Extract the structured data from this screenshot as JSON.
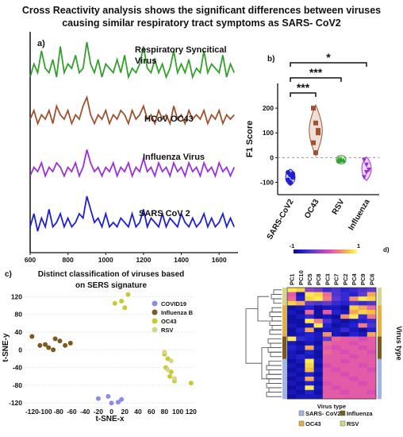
{
  "figure_title_lines": [
    "Cross Reactivity analysis shows the significant differences between viruses",
    "causing similar respiratory tract symptoms as SARS- CoV2"
  ],
  "colors": {
    "green": "#33a02c",
    "brown": "#a0522d",
    "purple": "#9b30d9",
    "blue": "#1f1fd6",
    "covid": "#8c8ce6",
    "fluB": "#7a5a1e",
    "oc43": "#c8c832",
    "rsv": "#d6d68a"
  },
  "chart_data": [
    {
      "type": "line",
      "panel": "a)",
      "x_ticks": [
        "600",
        "800",
        "1000",
        "1200",
        "1400",
        "1600"
      ],
      "xlim": [
        600,
        1700
      ],
      "series": [
        {
          "name": "Respiratory Syncitical Virus",
          "name_lines": [
            "Respiratory Syncitical",
            "Virus"
          ],
          "color": "#33a02c",
          "x": [
            600,
            620,
            640,
            660,
            680,
            700,
            720,
            740,
            760,
            780,
            800,
            820,
            840,
            860,
            880,
            900,
            920,
            940,
            960,
            980,
            1000,
            1020,
            1040,
            1060,
            1080,
            1100,
            1120,
            1140,
            1160,
            1180,
            1200,
            1220,
            1240,
            1260,
            1280,
            1300,
            1320,
            1340,
            1360,
            1380,
            1400,
            1420,
            1440,
            1460,
            1480,
            1500,
            1520,
            1540,
            1560,
            1580,
            1600,
            1620,
            1640,
            1660,
            1680
          ],
          "y": [
            0.2,
            0.5,
            0.3,
            0.8,
            0.4,
            0.3,
            0.6,
            0.2,
            0.9,
            0.3,
            0.5,
            0.4,
            0.7,
            0.3,
            0.4,
            1.0,
            0.5,
            0.3,
            0.6,
            0.2,
            0.5,
            0.4,
            0.3,
            0.6,
            0.3,
            0.7,
            0.2,
            0.4,
            0.3,
            0.5,
            0.9,
            0.4,
            0.3,
            0.6,
            0.3,
            0.5,
            0.2,
            0.4,
            0.8,
            0.3,
            0.5,
            0.3,
            0.6,
            0.2,
            0.4,
            0.3,
            0.8,
            0.3,
            0.5,
            0.4,
            0.3,
            0.7,
            0.2,
            0.5,
            0.3
          ]
        },
        {
          "name": "HCoV OC43",
          "name_lines": [
            "HCoV OC43"
          ],
          "color": "#a0522d",
          "x": [
            600,
            620,
            640,
            660,
            680,
            700,
            720,
            740,
            760,
            780,
            800,
            820,
            840,
            860,
            880,
            900,
            920,
            940,
            960,
            980,
            1000,
            1020,
            1040,
            1060,
            1080,
            1100,
            1120,
            1140,
            1160,
            1180,
            1200,
            1220,
            1240,
            1260,
            1280,
            1300,
            1320,
            1340,
            1360,
            1380,
            1400,
            1420,
            1440,
            1460,
            1480,
            1500,
            1520,
            1540,
            1560,
            1580,
            1600,
            1620,
            1640,
            1660,
            1680
          ],
          "y": [
            0.4,
            0.6,
            0.3,
            0.5,
            0.4,
            0.6,
            0.3,
            0.7,
            0.5,
            0.4,
            0.6,
            0.3,
            0.5,
            0.4,
            0.7,
            0.9,
            0.5,
            0.3,
            0.5,
            0.4,
            0.6,
            0.3,
            0.5,
            0.4,
            0.6,
            0.5,
            0.3,
            0.6,
            0.4,
            0.5,
            0.7,
            0.4,
            0.5,
            0.3,
            0.6,
            0.4,
            0.5,
            0.3,
            0.7,
            0.4,
            0.5,
            0.3,
            0.6,
            0.4,
            0.5,
            0.4,
            0.6,
            0.3,
            0.5,
            0.4,
            0.6,
            0.3,
            0.5,
            0.4,
            0.5
          ]
        },
        {
          "name": "Influenza Virus",
          "name_lines": [
            "Influenza Virus"
          ],
          "color": "#9b30d9",
          "x": [
            600,
            620,
            640,
            660,
            680,
            700,
            720,
            740,
            760,
            780,
            800,
            820,
            840,
            860,
            880,
            900,
            920,
            940,
            960,
            980,
            1000,
            1020,
            1040,
            1060,
            1080,
            1100,
            1120,
            1140,
            1160,
            1180,
            1200,
            1220,
            1240,
            1260,
            1280,
            1300,
            1320,
            1340,
            1360,
            1380,
            1400,
            1420,
            1440,
            1460,
            1480,
            1500,
            1520,
            1540,
            1560,
            1580,
            1600,
            1620,
            1640,
            1660,
            1680
          ],
          "y": [
            0.3,
            0.5,
            0.4,
            0.6,
            0.3,
            0.5,
            0.4,
            0.6,
            0.5,
            0.3,
            0.5,
            0.4,
            0.6,
            0.3,
            0.5,
            0.9,
            0.6,
            0.4,
            0.5,
            0.3,
            0.5,
            0.4,
            0.6,
            0.3,
            0.5,
            0.4,
            0.6,
            0.3,
            0.5,
            0.4,
            0.7,
            0.4,
            0.5,
            0.3,
            0.6,
            0.4,
            0.5,
            0.3,
            0.6,
            0.4,
            0.5,
            0.3,
            0.6,
            0.4,
            0.5,
            0.3,
            0.6,
            0.4,
            0.5,
            0.3,
            0.6,
            0.4,
            0.5,
            0.3,
            0.5
          ]
        },
        {
          "name": "SARS CoV 2",
          "name_lines": [
            "SARS CoV 2"
          ],
          "color": "#1f1fd6",
          "x": [
            600,
            620,
            640,
            660,
            680,
            700,
            720,
            740,
            760,
            780,
            800,
            820,
            840,
            860,
            880,
            900,
            920,
            940,
            960,
            980,
            1000,
            1020,
            1040,
            1060,
            1080,
            1100,
            1120,
            1140,
            1160,
            1180,
            1200,
            1220,
            1240,
            1260,
            1280,
            1300,
            1320,
            1340,
            1360,
            1380,
            1400,
            1420,
            1440,
            1460,
            1480,
            1500,
            1520,
            1540,
            1560,
            1580,
            1600,
            1620,
            1640,
            1660,
            1680
          ],
          "y": [
            0.3,
            0.6,
            0.2,
            0.5,
            0.3,
            0.7,
            0.3,
            0.4,
            0.6,
            0.3,
            0.5,
            0.3,
            0.4,
            0.6,
            0.5,
            1.0,
            0.7,
            0.4,
            0.5,
            0.3,
            0.6,
            0.3,
            0.4,
            0.3,
            0.5,
            0.4,
            0.3,
            0.6,
            0.3,
            0.4,
            0.7,
            0.3,
            0.5,
            0.4,
            0.3,
            0.6,
            0.3,
            0.5,
            0.4,
            0.3,
            0.6,
            0.4,
            0.3,
            0.5,
            0.3,
            0.4,
            0.6,
            0.3,
            0.5,
            0.3,
            0.4,
            0.6,
            0.3,
            0.5,
            0.3
          ]
        }
      ]
    },
    {
      "type": "violin",
      "panel": "b)",
      "ylabel": "F1 Score",
      "categories": [
        "SARS-CoV2",
        "OC43",
        "RSV",
        "Influenza"
      ],
      "ylim": [
        -150,
        300
      ],
      "y_ticks": [
        "-100",
        "0",
        "100",
        "200"
      ],
      "points": [
        {
          "category": "SARS-CoV2",
          "color": "#1f1fd6",
          "values": [
            -60,
            -70,
            -80,
            -90,
            -100,
            -65
          ]
        },
        {
          "category": "OC43",
          "color": "#a0522d",
          "values": [
            200,
            140,
            100,
            60,
            20,
            110
          ]
        },
        {
          "category": "RSV",
          "color": "#33a02c",
          "values": [
            -5,
            -8,
            -10,
            -12,
            -6
          ]
        },
        {
          "category": "Influenza",
          "color": "#9b30d9",
          "values": [
            -10,
            -30,
            -50,
            -80,
            -60
          ]
        }
      ],
      "significance": [
        {
          "from": "SARS-CoV2",
          "to": "Influenza",
          "label": "*"
        },
        {
          "from": "SARS-CoV2",
          "to": "RSV",
          "label": "***"
        },
        {
          "from": "SARS-CoV2",
          "to": "OC43",
          "label": "***"
        }
      ]
    },
    {
      "type": "scatter",
      "panel": "c)",
      "title_lines": [
        "Distinct classification of viruses based",
        "on SERS signature"
      ],
      "xlabel": "t-SNE-x",
      "ylabel": "t-SNE-y",
      "xlim": [
        -130,
        125
      ],
      "ylim": [
        -125,
        135
      ],
      "x_ticks": [
        "-120",
        "-100",
        "-80",
        "-60",
        "-40",
        "-20",
        "0",
        "20",
        "40",
        "60",
        "80",
        "100",
        "120"
      ],
      "y_ticks": [
        "120",
        "80",
        "40",
        "0",
        "-40",
        "-80",
        "-120"
      ],
      "series": [
        {
          "name": "COVID19",
          "color": "#8c8ce6",
          "x": [
            -20,
            -5,
            0,
            10,
            15
          ],
          "y": [
            -110,
            -105,
            -120,
            -118,
            -112
          ]
        },
        {
          "name": "Influenza B",
          "color": "#7a5a1e",
          "x": [
            -120,
            -108,
            -95,
            -85,
            -78,
            -70,
            -62,
            -88,
            -100
          ],
          "y": [
            30,
            10,
            5,
            25,
            20,
            10,
            15,
            0,
            12
          ]
        },
        {
          "name": "OC43",
          "color": "#c8c832",
          "x": [
            5,
            15,
            25,
            20,
            80,
            85,
            82,
            90,
            88,
            95,
            120
          ],
          "y": [
            105,
            110,
            125,
            95,
            -10,
            -20,
            -40,
            -50,
            -60,
            -70,
            -75
          ]
        },
        {
          "name": "RSV",
          "color": "#d6d68a",
          "x": [
            80,
            90,
            85,
            95
          ],
          "y": [
            -5,
            -25,
            -45,
            -65
          ]
        }
      ]
    },
    {
      "type": "heatmap",
      "panel": "d)",
      "columns": [
        "PC1",
        "PC10",
        "PC5",
        "PC8",
        "PC3",
        "PC7",
        "PC2",
        "PC4",
        "PC9",
        "PC6"
      ],
      "colorbar_ticks": [
        "-1",
        "1"
      ],
      "x_title": "Virus type",
      "row_title": "Virus type",
      "legend": [
        {
          "name": "SARS- CoV2",
          "color": "#9fb7e8"
        },
        {
          "name": "Influenza",
          "color": "#7a5a1e"
        },
        {
          "name": "OC43",
          "color": "#e6b040"
        },
        {
          "name": "RSV",
          "color": "#d6d68a"
        }
      ],
      "row_groups": [
        "RSV",
        "RSV",
        "RSV",
        "RSV",
        "OC43",
        "OC43",
        "OC43",
        "OC43",
        "OC43",
        "OC43",
        "OC43",
        "Influenza",
        "Influenza",
        "Influenza",
        "Influenza",
        "Influenza",
        "SARS- CoV2",
        "SARS- CoV2",
        "SARS- CoV2",
        "SARS- CoV2",
        "SARS- CoV2",
        "SARS- CoV2",
        "SARS- CoV2",
        "SARS- CoV2",
        "SARS- CoV2"
      ],
      "values": [
        [
          0.9,
          0.8,
          -0.2,
          -0.3,
          -0.6,
          -0.5,
          -0.7,
          -0.6,
          -0.5,
          -0.4
        ],
        [
          0.2,
          -0.8,
          0.9,
          0.8,
          0.3,
          -0.5,
          -0.6,
          -0.7,
          -0.4,
          0.6
        ],
        [
          0.3,
          -0.7,
          0.8,
          0.9,
          0.4,
          -0.4,
          -0.6,
          0.5,
          0.9,
          0.8
        ],
        [
          0.8,
          0.6,
          -0.4,
          -0.5,
          -0.4,
          -0.6,
          -0.7,
          -0.5,
          -0.6,
          -0.5
        ],
        [
          -0.9,
          -0.8,
          -0.7,
          -0.9,
          -0.8,
          -0.8,
          -0.9,
          0.8,
          0.6,
          0.3
        ],
        [
          -0.8,
          -0.9,
          0.3,
          -0.9,
          0.2,
          -0.7,
          -0.8,
          0.6,
          0.8,
          0.7
        ],
        [
          -0.9,
          -0.8,
          -0.6,
          -0.9,
          -0.8,
          -0.9,
          0.5,
          0.9,
          -0.6,
          0.4
        ],
        [
          -0.9,
          -0.9,
          0.9,
          0.4,
          -0.5,
          -0.8,
          -0.9,
          -0.8,
          -0.7,
          -0.6
        ],
        [
          -0.8,
          -0.9,
          -0.8,
          0.9,
          -0.7,
          -0.9,
          -0.8,
          -0.7,
          0.4,
          -0.5
        ],
        [
          -0.9,
          -0.7,
          0.6,
          -0.9,
          -0.8,
          -0.8,
          -0.6,
          -0.8,
          -0.9,
          -0.7
        ],
        [
          -0.9,
          -0.8,
          -0.7,
          -0.8,
          0.5,
          -0.8,
          -0.9,
          -0.7,
          -0.8,
          0.6
        ],
        [
          0.9,
          -0.6,
          -0.7,
          -0.8,
          -0.4,
          0.3,
          0.2,
          0.2,
          0.1,
          0.2
        ],
        [
          -0.8,
          -0.9,
          -0.8,
          -0.9,
          0.3,
          0.2,
          0.2,
          0.1,
          0.2,
          0.2
        ],
        [
          -0.7,
          -0.8,
          0.6,
          -0.8,
          0.2,
          0.1,
          0.2,
          0.2,
          0.1,
          0.2
        ],
        [
          -0.8,
          -0.9,
          -0.7,
          -0.9,
          0.3,
          0.2,
          0.1,
          0.2,
          0.2,
          0.1
        ],
        [
          -0.8,
          -0.7,
          -0.8,
          -0.9,
          0.2,
          0.2,
          0.2,
          0.1,
          0.2,
          0.2
        ],
        [
          -0.9,
          -0.8,
          0.9,
          -0.8,
          0.2,
          0.2,
          0.1,
          0.2,
          0.2,
          0.2
        ],
        [
          -0.8,
          -0.9,
          0.8,
          -0.9,
          0.1,
          0.2,
          0.2,
          0.2,
          0.1,
          0.2
        ],
        [
          -0.9,
          -0.8,
          0.7,
          -0.8,
          0.2,
          0.1,
          0.2,
          0.2,
          0.2,
          0.1
        ],
        [
          -0.8,
          -0.9,
          -0.7,
          -0.9,
          0.2,
          0.2,
          0.1,
          0.2,
          0.2,
          0.2
        ],
        [
          -0.9,
          -0.8,
          0.6,
          -0.8,
          0.2,
          0.2,
          0.2,
          0.1,
          0.2,
          0.2
        ],
        [
          -0.8,
          -0.9,
          -0.7,
          -0.9,
          0.1,
          0.2,
          0.2,
          0.2,
          0.1,
          0.2
        ],
        [
          -0.9,
          -0.8,
          0.9,
          -0.8,
          0.2,
          0.1,
          0.2,
          0.2,
          0.2,
          0.2
        ],
        [
          -0.8,
          -0.9,
          -0.7,
          -0.9,
          0.2,
          0.2,
          0.1,
          0.2,
          0.2,
          0.1
        ],
        [
          -0.9,
          -0.8,
          -0.8,
          -0.8,
          0.2,
          0.2,
          0.2,
          0.2,
          0.2,
          0.2
        ]
      ]
    }
  ]
}
